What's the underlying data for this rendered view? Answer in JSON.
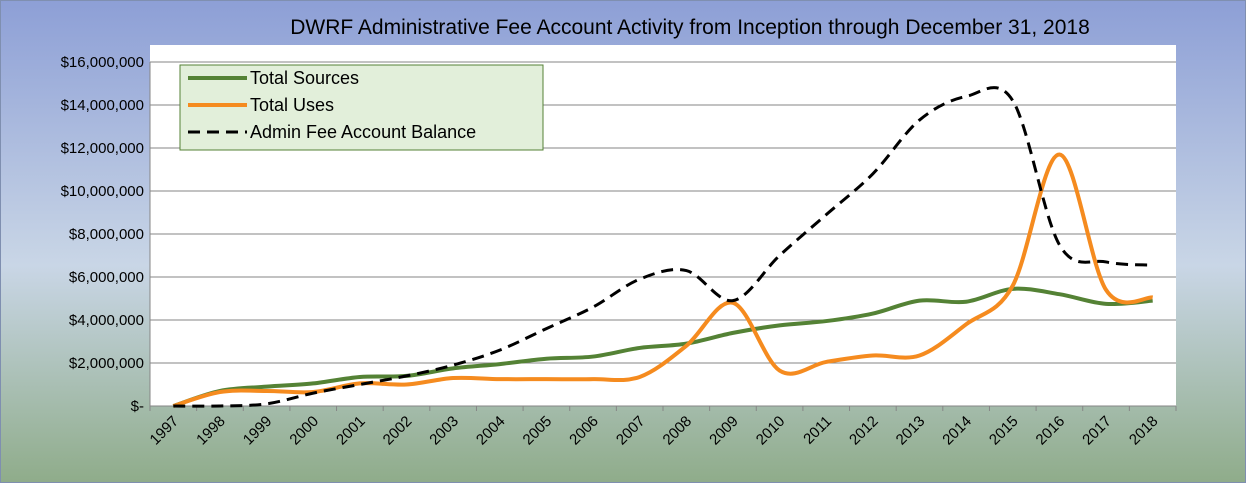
{
  "chart_data": {
    "type": "line",
    "title": "DWRF Administrative Fee Account Activity  from Inception through December 31, 2018",
    "categories": [
      "1997",
      "1998",
      "1999",
      "2000",
      "2001",
      "2002",
      "2003",
      "2004",
      "2005",
      "2006",
      "2007",
      "2008",
      "2009",
      "2010",
      "2011",
      "2012",
      "2013",
      "2014",
      "2015",
      "2016",
      "2017",
      "2018"
    ],
    "series": [
      {
        "name": "Total Sources",
        "color": "#548235",
        "dash": false,
        "values": [
          0,
          700000,
          900000,
          1050000,
          1350000,
          1400000,
          1750000,
          1950000,
          2200000,
          2300000,
          2700000,
          2900000,
          3400000,
          3750000,
          3950000,
          4300000,
          4900000,
          4850000,
          5450000,
          5200000,
          4750000,
          4900000
        ]
      },
      {
        "name": "Total Uses",
        "color": "#f58b1f",
        "dash": false,
        "values": [
          0,
          650000,
          700000,
          650000,
          1050000,
          1000000,
          1300000,
          1250000,
          1250000,
          1250000,
          1350000,
          2800000,
          4800000,
          1650000,
          2050000,
          2350000,
          2350000,
          3800000,
          5600000,
          11700000,
          5400000,
          5050000
        ]
      },
      {
        "name": "Admin Fee Account Balance",
        "color": "#000000",
        "dash": true,
        "values": [
          0,
          0,
          100000,
          600000,
          1000000,
          1400000,
          1900000,
          2600000,
          3600000,
          4600000,
          5900000,
          6300000,
          4900000,
          7000000,
          8900000,
          10800000,
          13300000,
          14400000,
          14200000,
          7500000,
          6700000,
          6550000
        ]
      }
    ],
    "ylim": [
      0,
      16000000
    ],
    "yticks": [
      {
        "value": 0,
        "label": "$-"
      },
      {
        "value": 2000000,
        "label": "$2,000,000"
      },
      {
        "value": 4000000,
        "label": "$4,000,000"
      },
      {
        "value": 6000000,
        "label": "$6,000,000"
      },
      {
        "value": 8000000,
        "label": "$8,000,000"
      },
      {
        "value": 10000000,
        "label": "$10,000,000"
      },
      {
        "value": 12000000,
        "label": "$12,000,000"
      },
      {
        "value": 14000000,
        "label": "$14,000,000"
      },
      {
        "value": 16000000,
        "label": "$16,000,000"
      }
    ],
    "grid": true,
    "legend": "top-left"
  }
}
